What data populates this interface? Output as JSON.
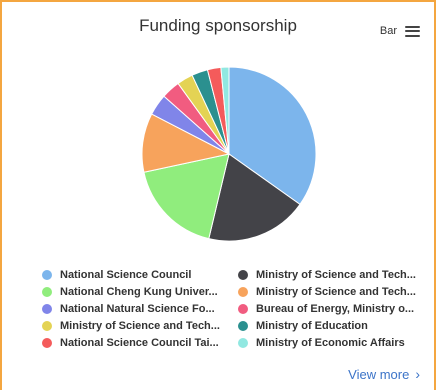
{
  "menu": {
    "label": "Bar"
  },
  "footer": {
    "view_more": "View more",
    "chevron": "›"
  },
  "chart_data": {
    "type": "pie",
    "title": "Funding sponsorship",
    "start_angle_deg": 0,
    "slices": [
      {
        "label": "National Science Council",
        "value": 35,
        "color": "#7cb5ec"
      },
      {
        "label": "Ministry of Science and Tech...",
        "value": 19,
        "color": "#434348"
      },
      {
        "label": "National Cheng Kung Univer...",
        "value": 18,
        "color": "#90ed7d"
      },
      {
        "label": "Ministry of Science and Tech...",
        "value": 11,
        "color": "#f7a35c"
      },
      {
        "label": "National Natural Science Fo...",
        "value": 4,
        "color": "#8085e9"
      },
      {
        "label": "Bureau of Energy, Ministry o...",
        "value": 3.5,
        "color": "#f15c80"
      },
      {
        "label": "Ministry of Science and Tech...",
        "value": 3,
        "color": "#e4d354"
      },
      {
        "label": "Ministry of Education",
        "value": 3,
        "color": "#2b908f"
      },
      {
        "label": "National Science Council Tai...",
        "value": 2.5,
        "color": "#f45b5b"
      },
      {
        "label": "Ministry of Economic Affairs",
        "value": 1.5,
        "color": "#91e8e1"
      }
    ],
    "legend_position": "bottom"
  }
}
